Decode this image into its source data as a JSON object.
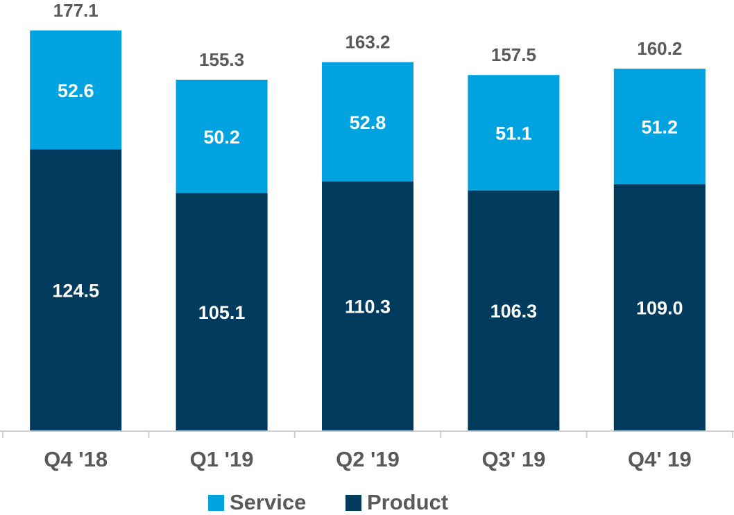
{
  "chart_data": {
    "type": "stacked-bar",
    "categories": [
      "Q4 '18",
      "Q1 '19",
      "Q2 '19",
      "Q3' 19",
      "Q4' 19"
    ],
    "series": [
      {
        "name": "Product",
        "color": "#003a5d",
        "values": [
          124.5,
          105.1,
          110.3,
          106.3,
          109.0
        ],
        "value_labels": [
          "124.5",
          "105.1",
          "110.3",
          "106.3",
          "109.0"
        ]
      },
      {
        "name": "Service",
        "color": "#00a3e0",
        "values": [
          52.6,
          50.2,
          52.8,
          51.1,
          51.2
        ]
      }
    ],
    "totals": [
      177.1,
      155.3,
      163.2,
      157.5,
      160.2
    ],
    "legend_order": [
      "Service",
      "Product"
    ]
  }
}
